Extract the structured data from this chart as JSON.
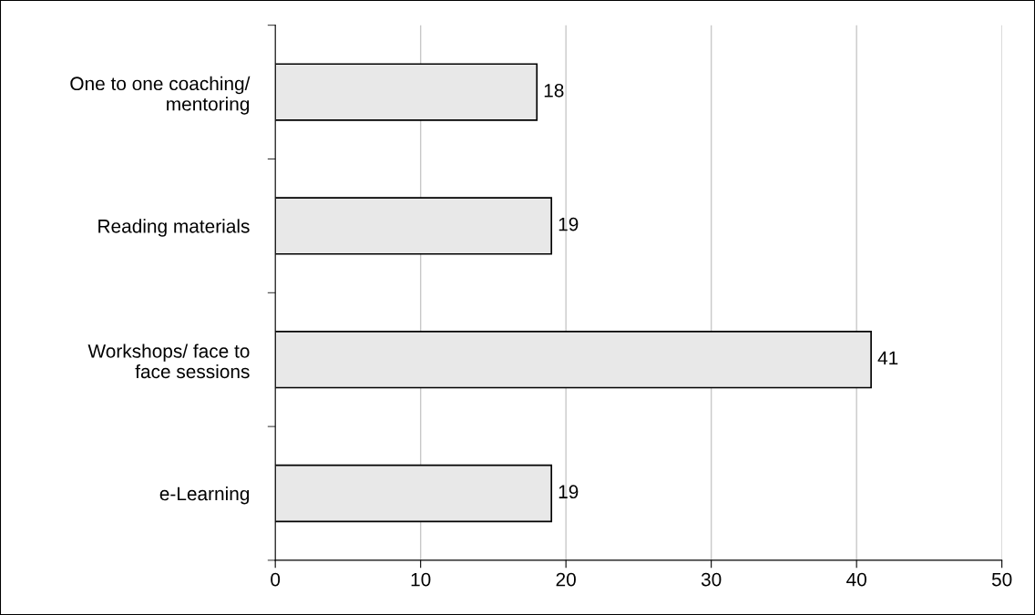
{
  "chart_data": {
    "type": "bar",
    "orientation": "horizontal",
    "categories": [
      "One to one coaching/\nmentoring",
      "Reading materials",
      "Workshops/ face to\nface sessions",
      "e-Learning"
    ],
    "values": [
      18,
      19,
      41,
      19
    ],
    "color": "#e8e8e8",
    "xlim": [
      0,
      50
    ],
    "xticks": [
      0,
      10,
      20,
      30,
      40,
      50
    ],
    "grid": "x",
    "data_labels": true
  }
}
